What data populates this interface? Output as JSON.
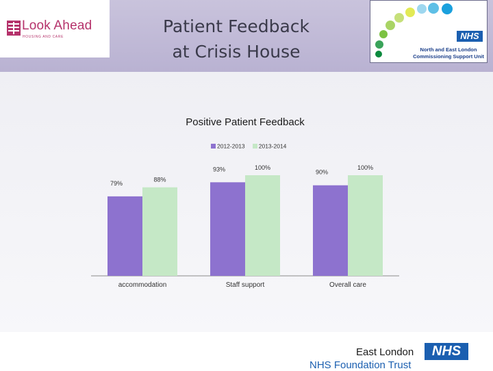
{
  "header": {
    "title": "Patient Feedback\nat Crisis House",
    "band_color": "#bdb6d4"
  },
  "logo_left": {
    "name": "Look Ahead",
    "subtitle": "HOUSING AND CARE",
    "color": "#b5326b"
  },
  "logo_right": {
    "badge": "NHS",
    "line1": "North and East London",
    "line2": "Commissioning Support Unit",
    "dot_colors": [
      "#0b8a3e",
      "#3aa35a",
      "#7cc242",
      "#a9d465",
      "#c6e07a",
      "#e2ea55",
      "#9ed7ef",
      "#5ebfe6",
      "#1aa0dd"
    ]
  },
  "footer": {
    "org": "East London",
    "badge": "NHS",
    "trust": "NHS Foundation Trust"
  },
  "chart_data": {
    "type": "bar",
    "title": "Positive Patient Feedback",
    "categories": [
      "accommodation",
      "Staff support",
      "Overall care"
    ],
    "series": [
      {
        "name": "2012-2013",
        "values": [
          79,
          93,
          90
        ],
        "labels": [
          "79%",
          "93%",
          "90%"
        ],
        "color": "#8d72cf"
      },
      {
        "name": "2013-2014",
        "values": [
          88,
          100,
          100
        ],
        "labels": [
          "88%",
          "100%",
          "100%"
        ],
        "color": "#c5e8c6"
      }
    ],
    "ylim": [
      0,
      100
    ],
    "grid": false,
    "legend": "top-center"
  }
}
